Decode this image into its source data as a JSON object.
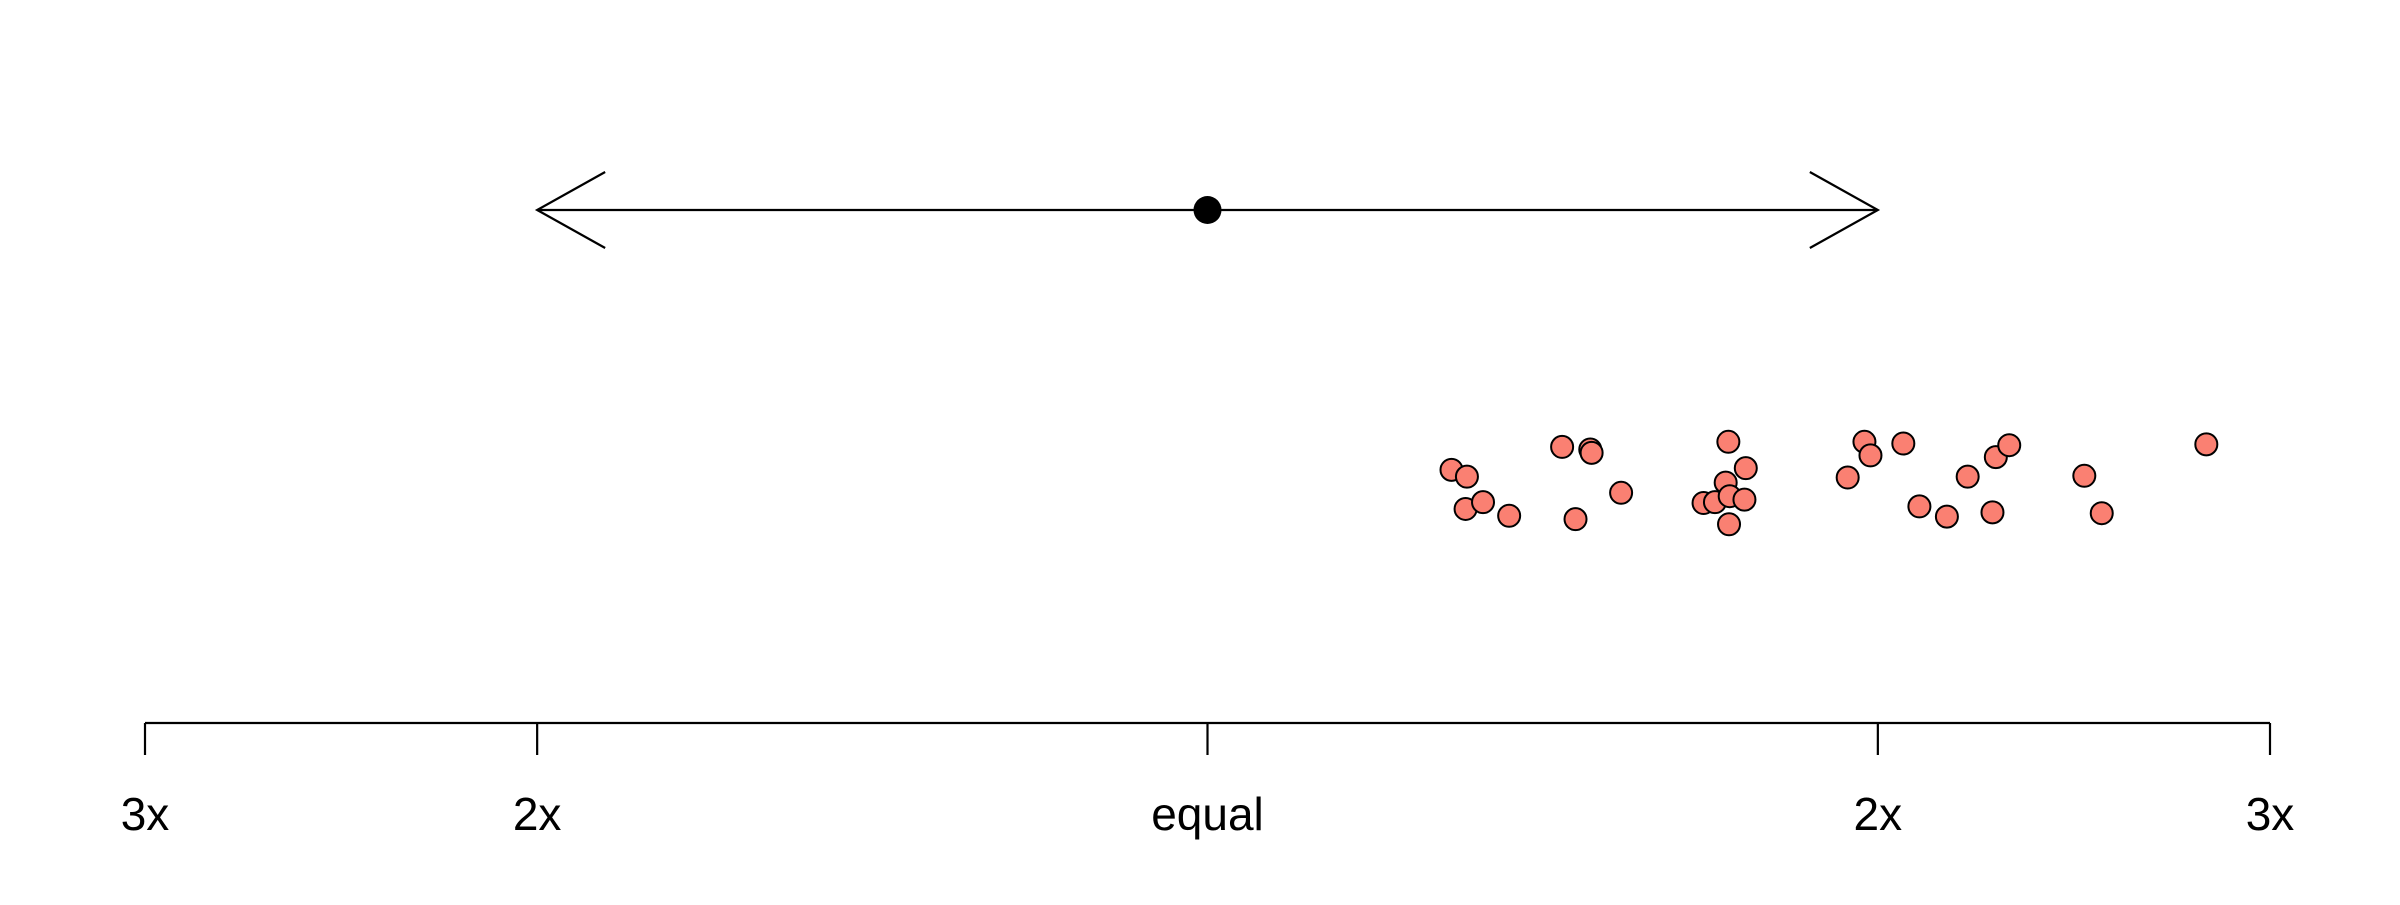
{
  "chart_data": {
    "type": "scatter",
    "title": "",
    "xlabel": "",
    "ylabel": "",
    "x_scale": "log2 ratio (left = first faster, right = second faster)",
    "xlim": [
      -1.585,
      1.585
    ],
    "ticks": [
      {
        "value": -1.585,
        "label": "3x"
      },
      {
        "value": -1.0,
        "label": "2x"
      },
      {
        "value": 0.0,
        "label": "equal"
      },
      {
        "value": 1.0,
        "label": "2x"
      },
      {
        "value": 1.585,
        "label": "3x"
      }
    ],
    "reference_interval": {
      "center": 0.0,
      "low": -1.0,
      "high": 1.0
    },
    "point_color": "#FA8072",
    "points": [
      {
        "x": 0.364,
        "jitter": 0.59
      },
      {
        "x": 0.387,
        "jitter": 0.51
      },
      {
        "x": 0.385,
        "jitter": 0.13
      },
      {
        "x": 0.411,
        "jitter": 0.21
      },
      {
        "x": 0.45,
        "jitter": 0.05
      },
      {
        "x": 0.529,
        "jitter": 0.86
      },
      {
        "x": 0.571,
        "jitter": 0.83
      },
      {
        "x": 0.573,
        "jitter": 0.79
      },
      {
        "x": 0.549,
        "jitter": 0.01
      },
      {
        "x": 0.617,
        "jitter": 0.32
      },
      {
        "x": 0.74,
        "jitter": 0.2
      },
      {
        "x": 0.757,
        "jitter": 0.21
      },
      {
        "x": 0.777,
        "jitter": 0.92
      },
      {
        "x": 0.773,
        "jitter": 0.44
      },
      {
        "x": 0.779,
        "jitter": 0.28
      },
      {
        "x": 0.801,
        "jitter": 0.24
      },
      {
        "x": 0.778,
        "jitter": -0.05
      },
      {
        "x": 0.803,
        "jitter": 0.61
      },
      {
        "x": 0.955,
        "jitter": 0.5
      },
      {
        "x": 0.98,
        "jitter": 0.92
      },
      {
        "x": 0.989,
        "jitter": 0.76
      },
      {
        "x": 1.038,
        "jitter": 0.9
      },
      {
        "x": 1.062,
        "jitter": 0.16
      },
      {
        "x": 1.103,
        "jitter": 0.04
      },
      {
        "x": 1.134,
        "jitter": 0.51
      },
      {
        "x": 1.176,
        "jitter": 0.74
      },
      {
        "x": 1.196,
        "jitter": 0.88
      },
      {
        "x": 1.171,
        "jitter": 0.09
      },
      {
        "x": 1.308,
        "jitter": 0.52
      },
      {
        "x": 1.334,
        "jitter": 0.08
      },
      {
        "x": 1.49,
        "jitter": 0.89
      }
    ]
  }
}
